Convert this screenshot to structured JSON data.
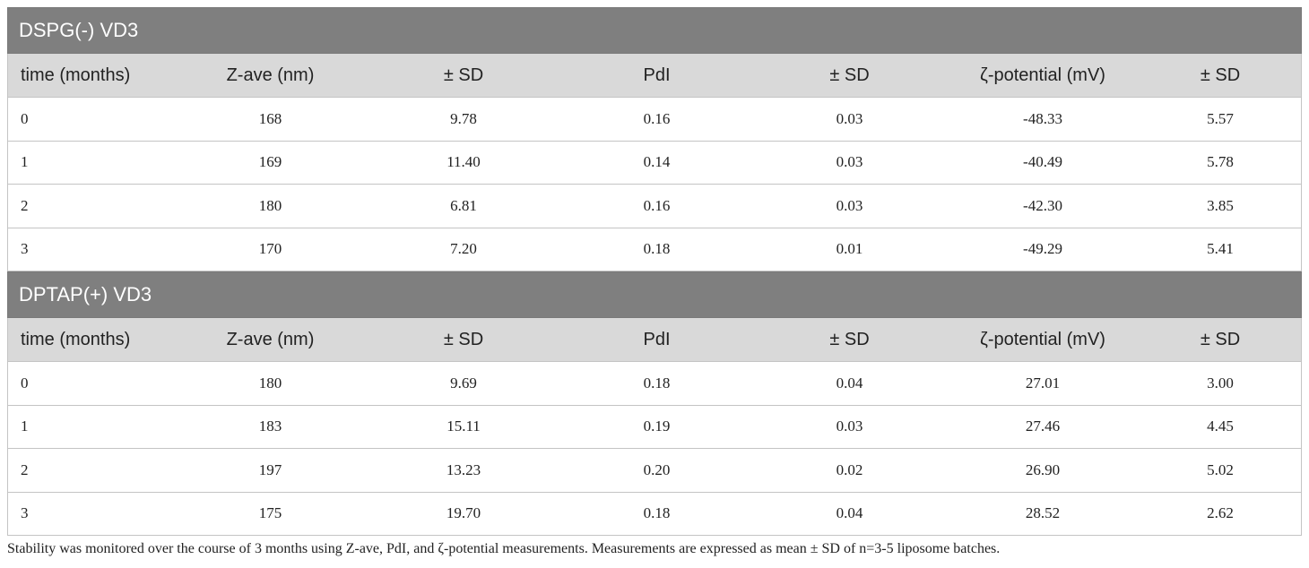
{
  "sections": [
    {
      "title": "DSPG(-) VD3",
      "columns": [
        "time (months)",
        "Z-ave (nm)",
        "± SD",
        "PdI",
        "± SD",
        "ζ-potential (mV)",
        "± SD"
      ],
      "rows": [
        [
          "0",
          "168",
          "9.78",
          "0.16",
          "0.03",
          "-48.33",
          "5.57"
        ],
        [
          "1",
          "169",
          "11.40",
          "0.14",
          "0.03",
          "-40.49",
          "5.78"
        ],
        [
          "2",
          "180",
          "6.81",
          "0.16",
          "0.03",
          "-42.30",
          "3.85"
        ],
        [
          "3",
          "170",
          "7.20",
          "0.18",
          "0.01",
          "-49.29",
          "5.41"
        ]
      ]
    },
    {
      "title": "DPTAP(+) VD3",
      "columns": [
        "time (months)",
        "Z-ave (nm)",
        "± SD",
        "PdI",
        "± SD",
        "ζ-potential (mV)",
        "± SD"
      ],
      "rows": [
        [
          "0",
          "180",
          "9.69",
          "0.18",
          "0.04",
          "27.01",
          "3.00"
        ],
        [
          "1",
          "183",
          "15.11",
          "0.19",
          "0.03",
          "27.46",
          "4.45"
        ],
        [
          "2",
          "197",
          "13.23",
          "0.20",
          "0.02",
          "26.90",
          "5.02"
        ],
        [
          "3",
          "175",
          "19.70",
          "0.18",
          "0.04",
          "28.52",
          "2.62"
        ]
      ]
    }
  ],
  "footnote": "Stability was monitored over the course of 3 months using Z-ave, PdI, and ζ-potential measurements. Measurements are expressed as mean ± SD of n=3-5 liposome batches."
}
